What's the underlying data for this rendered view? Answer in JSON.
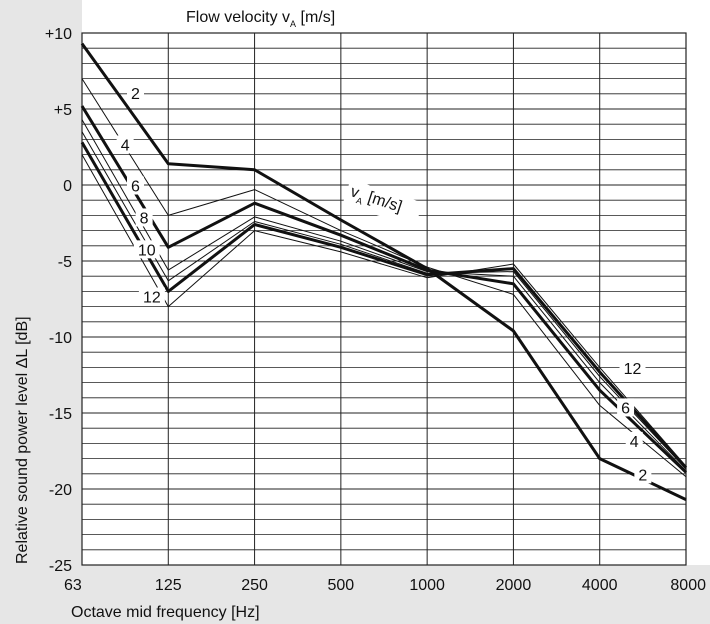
{
  "chart_data": {
    "type": "line",
    "title_parts": {
      "main": "Flow velocity v",
      "sub": "A",
      "unit": " [m/s]"
    },
    "xlabel": "Octave mid frequency [Hz]",
    "ylabel": "Relative sound power level ΔL [dB]",
    "x_categories": [
      "63",
      "125",
      "250",
      "500",
      "1000",
      "2000",
      "4000",
      "8000"
    ],
    "y_ticks": [
      {
        "value": 10,
        "label": "+10"
      },
      {
        "value": 5,
        "label": "+5"
      },
      {
        "value": 0,
        "label": "0"
      },
      {
        "value": -5,
        "label": "-5"
      },
      {
        "value": -10,
        "label": "-10"
      },
      {
        "value": -15,
        "label": "-15"
      },
      {
        "value": -20,
        "label": "-20"
      },
      {
        "value": -25,
        "label": "-25"
      }
    ],
    "ylim": [
      -25,
      10
    ],
    "y_minor_step": 1,
    "grid": true,
    "series": [
      {
        "name": "2",
        "bold": true,
        "values": [
          9.3,
          1.4,
          1.0,
          -2.3,
          -5.5,
          -9.6,
          -18.0,
          -20.7
        ]
      },
      {
        "name": "4",
        "bold": false,
        "values": [
          7.0,
          -2.0,
          -0.3,
          -3.0,
          -5.4,
          -7.2,
          -14.5,
          -19.2
        ]
      },
      {
        "name": "6",
        "bold": true,
        "values": [
          5.2,
          -4.1,
          -1.2,
          -3.3,
          -5.6,
          -6.5,
          -13.5,
          -18.9
        ]
      },
      {
        "name": "8",
        "bold": false,
        "values": [
          4.3,
          -5.6,
          -2.1,
          -3.7,
          -5.7,
          -6.0,
          -13.0,
          -18.8
        ]
      },
      {
        "name": "10",
        "bold": false,
        "values": [
          3.5,
          -6.3,
          -2.4,
          -3.9,
          -5.8,
          -5.7,
          -12.6,
          -18.7
        ]
      },
      {
        "name": "12",
        "bold": true,
        "values": [
          2.8,
          -7.0,
          -2.6,
          -4.1,
          -5.9,
          -5.5,
          -12.3,
          -18.6
        ]
      },
      {
        "name": "",
        "bold": false,
        "values": [
          2.0,
          -8.0,
          -3.0,
          -4.4,
          -6.1,
          -5.2,
          -12.0,
          -18.5
        ]
      }
    ],
    "curve_labels": [
      {
        "text": "2",
        "x": 0.62,
        "y": 6.0
      },
      {
        "text": "4",
        "x": 0.5,
        "y": 2.6
      },
      {
        "text": "6",
        "x": 0.62,
        "y": -0.1
      },
      {
        "text": "8",
        "x": 0.72,
        "y": -2.2
      },
      {
        "text": "10",
        "x": 0.75,
        "y": -4.3
      },
      {
        "text": "12",
        "x": 0.81,
        "y": -7.4
      },
      {
        "text": "12",
        "x": 6.38,
        "y": -12.1
      },
      {
        "text": "6",
        "x": 6.3,
        "y": -14.7
      },
      {
        "text": "4",
        "x": 6.4,
        "y": -16.9
      },
      {
        "text": "2",
        "x": 6.5,
        "y": -19.1
      }
    ],
    "inline_label": {
      "main": "v",
      "sub": "A",
      "unit": " [m/s]",
      "x": 3.1,
      "y": -0.7
    }
  }
}
